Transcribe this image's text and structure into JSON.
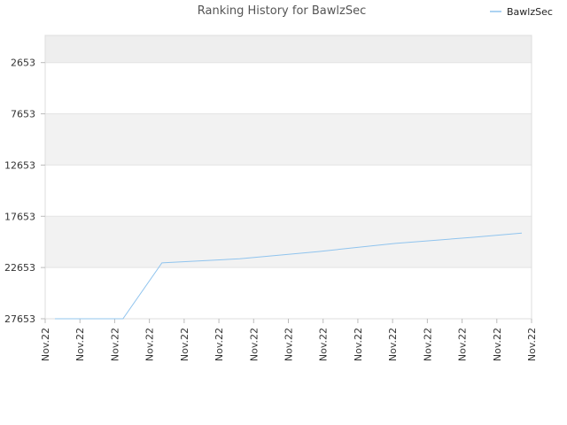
{
  "chart_data": {
    "type": "line",
    "title": "Ranking History for BawlzSec",
    "xlabel": "",
    "ylabel": "",
    "legend": {
      "position": "top-right",
      "entries": [
        "BawlzSec"
      ]
    },
    "y_reversed": true,
    "ylim": [
      27653,
      0
    ],
    "yticks": [
      2653,
      7653,
      12653,
      17653,
      22653,
      27653
    ],
    "xticks": [
      "Nov.22",
      "Nov.22",
      "Nov.22",
      "Nov.22",
      "Nov.22",
      "Nov.22",
      "Nov.22",
      "Nov.22",
      "Nov.22",
      "Nov.22",
      "Nov.22",
      "Nov.22",
      "Nov.22",
      "Nov.22",
      "Nov.22"
    ],
    "grid": "horizontal bands",
    "colors": {
      "line": "#90c4ee",
      "band_dark": "#f2f2f2",
      "band_light": "#ffffff"
    },
    "series": [
      {
        "name": "BawlzSec",
        "x": [
          0.02,
          0.16,
          0.24,
          0.4,
          0.56,
          0.72,
          0.88,
          0.98
        ],
        "values": [
          27653,
          27653,
          22200,
          21800,
          21100,
          20300,
          19700,
          19300
        ]
      }
    ]
  }
}
